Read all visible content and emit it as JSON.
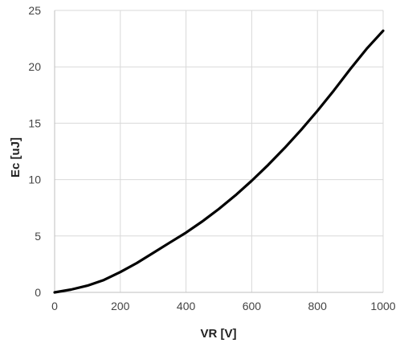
{
  "chart_data": {
    "type": "line",
    "title": "",
    "xlabel": "VR  [V]",
    "ylabel": "Ec  [uJ]",
    "xlim": [
      0,
      1000
    ],
    "ylim": [
      0,
      25
    ],
    "x_ticks": [
      "0",
      "200",
      "400",
      "600",
      "800",
      "1000"
    ],
    "y_ticks": [
      "0",
      "5",
      "10",
      "15",
      "20",
      "25"
    ],
    "grid": true,
    "legend": "none",
    "series": [
      {
        "color": "#000000",
        "x": [
          0,
          50,
          100,
          150,
          200,
          250,
          300,
          350,
          400,
          450,
          500,
          550,
          600,
          650,
          700,
          750,
          800,
          850,
          900,
          950,
          1000
        ],
        "y": [
          0.0,
          0.25,
          0.6,
          1.1,
          1.8,
          2.6,
          3.5,
          4.4,
          5.3,
          6.3,
          7.4,
          8.6,
          9.9,
          11.3,
          12.8,
          14.4,
          16.1,
          17.9,
          19.8,
          21.6,
          23.2
        ]
      }
    ]
  }
}
